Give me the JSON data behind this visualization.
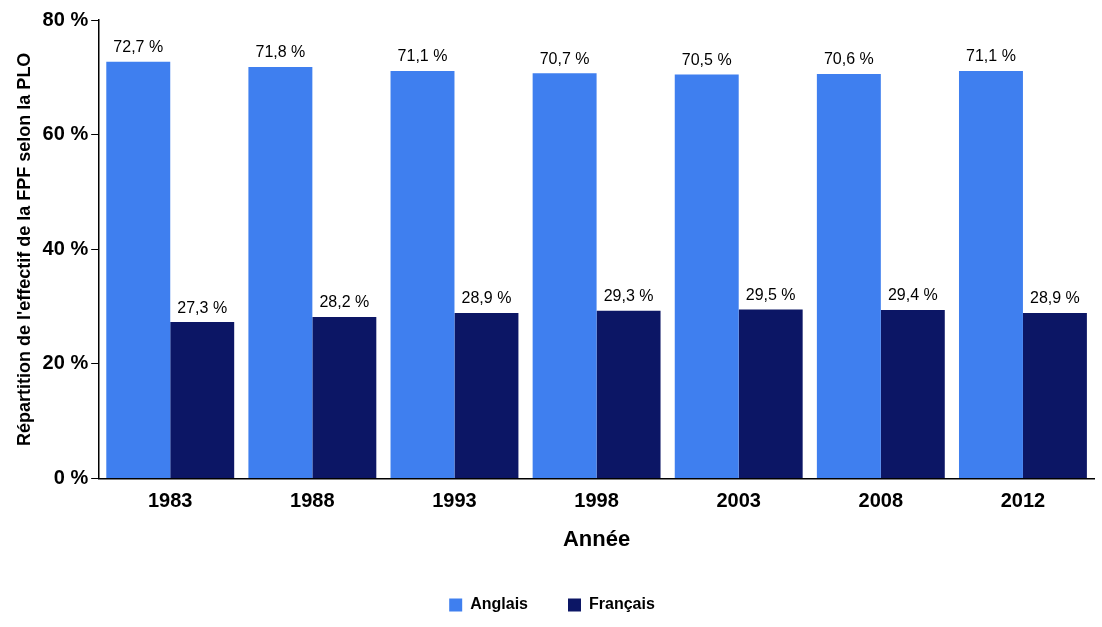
{
  "chart_data": {
    "type": "bar",
    "xlabel": "Année",
    "ylabel": "Répartition de l'effectif de la FPF selon la PLO",
    "categories": [
      "1983",
      "1988",
      "1993",
      "1998",
      "2003",
      "2008",
      "2012"
    ],
    "series": [
      {
        "name": "Anglais",
        "color": "#3f7fef",
        "values": [
          72.7,
          71.8,
          71.1,
          70.7,
          70.5,
          70.6,
          71.1
        ],
        "value_labels": [
          "72,7 %",
          "71,8 %",
          "71,1 %",
          "70,7 %",
          "70,5 %",
          "70,6 %",
          "71,1 %"
        ]
      },
      {
        "name": "Français",
        "color": "#0c1665",
        "values": [
          27.3,
          28.2,
          28.9,
          29.3,
          29.5,
          29.4,
          28.9
        ],
        "value_labels": [
          "27,3 %",
          "28,2 %",
          "28,9 %",
          "29,3 %",
          "29,5 %",
          "29,4 %",
          "28,9 %"
        ]
      }
    ],
    "ylim": [
      0,
      80
    ],
    "yticks": [
      {
        "value": 0,
        "label": "0 %"
      },
      {
        "value": 20,
        "label": "20 %"
      },
      {
        "value": 40,
        "label": "40 %"
      },
      {
        "value": 60,
        "label": "60 %"
      },
      {
        "value": 80,
        "label": "80 %"
      }
    ],
    "grid": false,
    "legend": "bottom"
  }
}
